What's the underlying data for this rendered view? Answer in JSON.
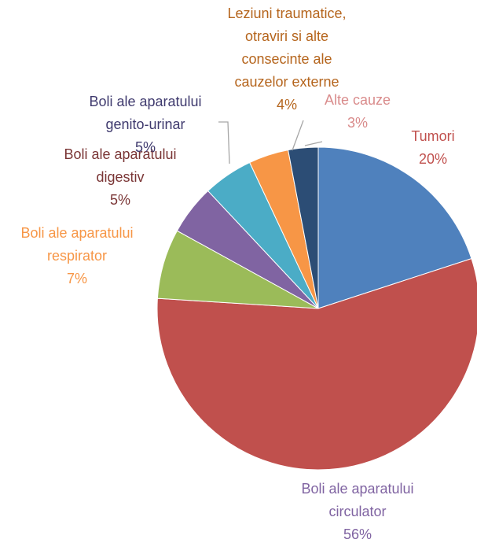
{
  "chart_data": {
    "type": "pie",
    "categories": [
      "Tumori",
      "Boli ale aparatului circulator",
      "Boli ale aparatului respirator",
      "Boli ale aparatului digestiv",
      "Boli ale aparatului genito-urinar",
      "Leziuni traumatice, otraviri si alte consecinte ale cauzelor externe",
      "Alte cauze"
    ],
    "values": [
      20,
      56,
      7,
      5,
      5,
      4,
      3
    ],
    "value_labels": [
      "20%",
      "56%",
      "7%",
      "5%",
      "5%",
      "4%",
      "3%"
    ],
    "colors": [
      "#4f81bd",
      "#c0504d",
      "#9bbb59",
      "#8064a2",
      "#4bacc6",
      "#f79646",
      "#2c4d75"
    ],
    "label_colors": [
      "#c0504d",
      "#8064a2",
      "#f79646",
      "#7a3535",
      "#3f3a6e",
      "#b5651d",
      "#d98b8b"
    ]
  }
}
